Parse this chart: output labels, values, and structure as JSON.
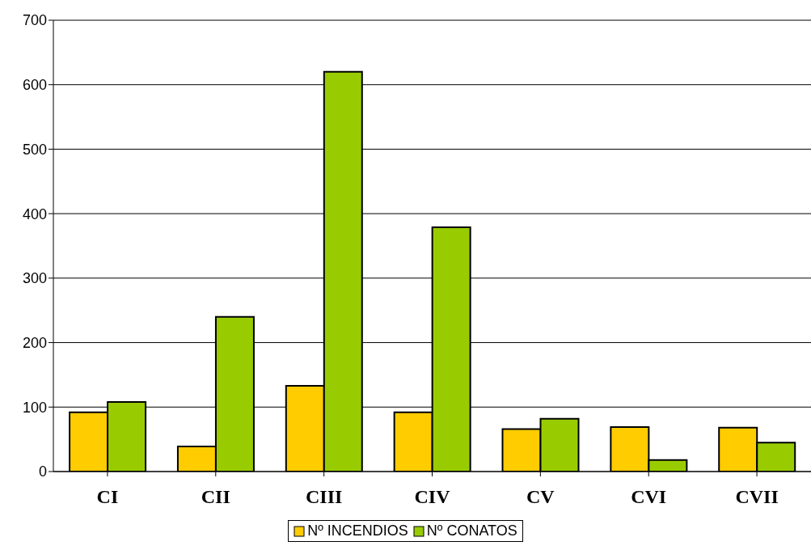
{
  "chart_data": {
    "type": "bar",
    "categories": [
      "CI",
      "CII",
      "CIII",
      "CIV",
      "CV",
      "CVI",
      "CVII"
    ],
    "series": [
      {
        "name": "Nº INCENDIOS",
        "color": "#ffcc00",
        "values": [
          92,
          39,
          133,
          92,
          66,
          69,
          68
        ]
      },
      {
        "name": "Nº CONATOS",
        "color": "#99cc00",
        "values": [
          108,
          240,
          620,
          379,
          82,
          18,
          45
        ]
      }
    ],
    "ylim": [
      0,
      700
    ],
    "yticks": [
      0,
      100,
      200,
      300,
      400,
      500,
      600,
      700
    ],
    "grid": "y",
    "legend": "bottom"
  }
}
